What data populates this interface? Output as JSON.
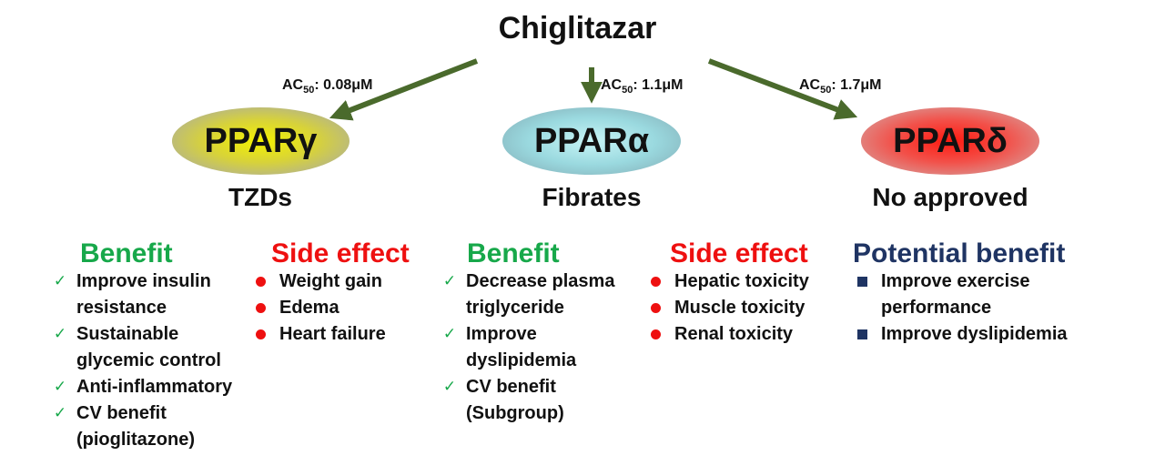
{
  "title": "Chiglitazar",
  "ac_prefix": "AC",
  "ac_sub": "50",
  "targets": [
    {
      "name": "PPARγ",
      "ac_value": ": 0.08μM",
      "drug_class": "TZDs",
      "benefit_heading": "Benefit",
      "benefits": [
        "Improve insulin resistance",
        "Sustainable glycemic control",
        "Anti-inflammatory",
        "CV benefit (pioglitazone)"
      ],
      "side_effect_heading": "Side effect",
      "side_effects": [
        "Weight gain",
        "Edema",
        "Heart failure"
      ]
    },
    {
      "name": "PPARα",
      "ac_value": ": 1.1μM",
      "drug_class": "Fibrates",
      "benefit_heading": "Benefit",
      "benefits": [
        "Decrease plasma triglyceride",
        "Improve dyslipidemia",
        "CV benefit (Subgroup)"
      ],
      "side_effect_heading": "Side effect",
      "side_effects": [
        "Hepatic toxicity",
        "Muscle toxicity",
        "Renal toxicity"
      ]
    },
    {
      "name": "PPARδ",
      "ac_value": ": 1.7μM",
      "drug_class": "No approved",
      "benefit_heading": "Potential benefit",
      "benefits": [
        "Improve exercise performance",
        "Improve dyslipidemia"
      ]
    }
  ],
  "colors": {
    "arrow": "#4a6a2c",
    "benefit": "#17a84a",
    "side_effect": "#ee1010",
    "potential_benefit": "#1f3463"
  },
  "icons": {
    "benefit_bullet": "checkmark-icon",
    "side_effect_bullet": "red-dot-icon",
    "potential_benefit_bullet": "navy-square-icon"
  }
}
